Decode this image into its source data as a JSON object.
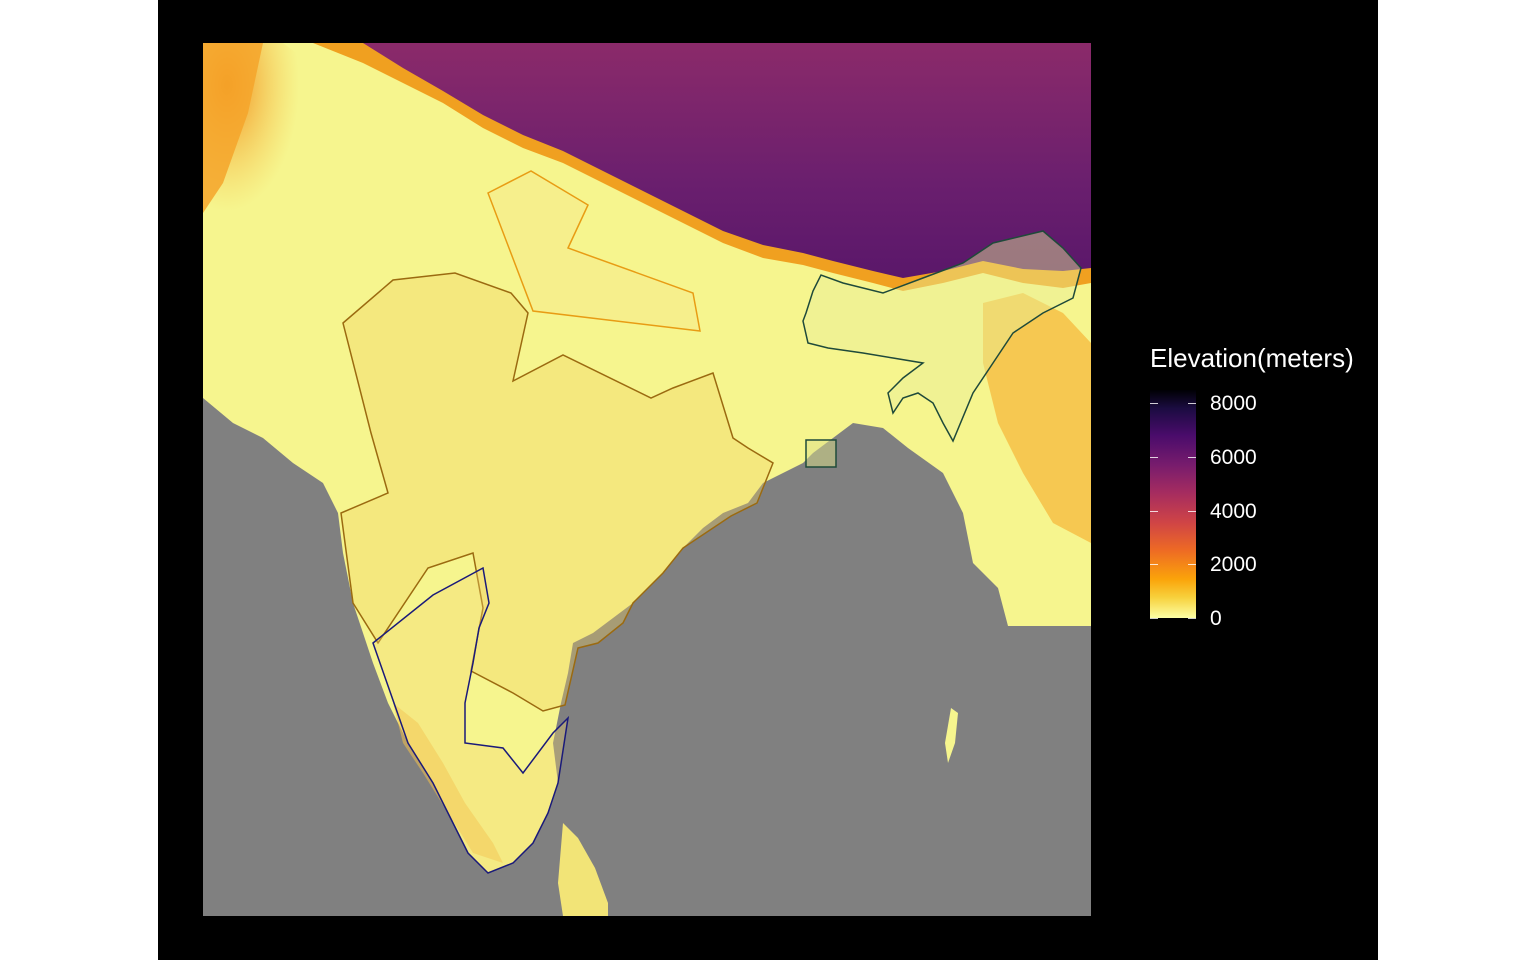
{
  "legend": {
    "title": "Elevation(meters)",
    "ticks": [
      {
        "label": "8000",
        "value": 8000
      },
      {
        "label": "6000",
        "value": 6000
      },
      {
        "label": "4000",
        "value": 4000
      },
      {
        "label": "2000",
        "value": 2000
      },
      {
        "label": "0",
        "value": 0
      }
    ],
    "min": 0,
    "max": 8500
  },
  "colors": {
    "background": "#000000",
    "ocean": "#808080",
    "lowland": "#f6f58e",
    "highland": "#6e1f6b",
    "region_outline_orange": "#e89c14",
    "region_outline_brown": "#9b6a10",
    "region_outline_navy": "#1a1a7a",
    "region_outline_green": "#1f4a3a"
  }
}
